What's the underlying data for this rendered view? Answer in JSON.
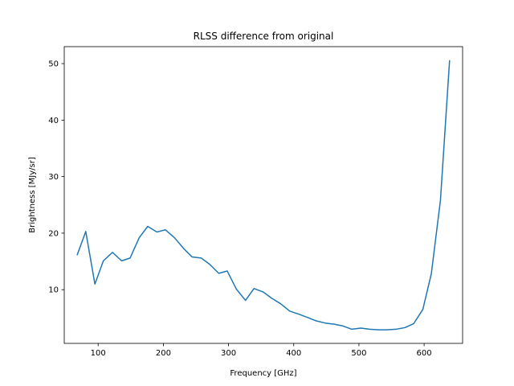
{
  "chart_data": {
    "type": "line",
    "title": "RLSS difference from original",
    "xlabel": "Frequency [GHz]",
    "ylabel": "Brightness [MJy/sr]",
    "xlim": [
      48,
      659
    ],
    "ylim": [
      0.5,
      53
    ],
    "xticks": [
      100,
      200,
      300,
      400,
      500,
      600
    ],
    "yticks": [
      10,
      20,
      30,
      40,
      50
    ],
    "grid": false,
    "series": [
      {
        "color": "#1f77b4",
        "x": [
          68,
          81,
          95,
          108,
          122,
          136,
          149,
          163,
          176,
          190,
          203,
          217,
          231,
          244,
          258,
          271,
          285,
          298,
          312,
          326,
          339,
          353,
          366,
          380,
          394,
          407,
          421,
          434,
          448,
          462,
          475,
          489,
          503,
          516,
          530,
          543,
          557,
          571,
          584,
          598,
          611,
          625,
          639
        ],
        "y": [
          16.2,
          20.3,
          11.0,
          15.1,
          16.6,
          15.1,
          15.6,
          19.2,
          21.2,
          20.2,
          20.6,
          19.2,
          17.3,
          15.8,
          15.6,
          14.5,
          12.9,
          13.3,
          10.1,
          8.1,
          10.2,
          9.6,
          8.5,
          7.5,
          6.2,
          5.7,
          5.1,
          4.5,
          4.1,
          3.9,
          3.6,
          3.0,
          3.2,
          3.0,
          2.9,
          2.9,
          3.0,
          3.3,
          4.0,
          6.5,
          12.8,
          25.8,
          50.5
        ]
      }
    ]
  }
}
